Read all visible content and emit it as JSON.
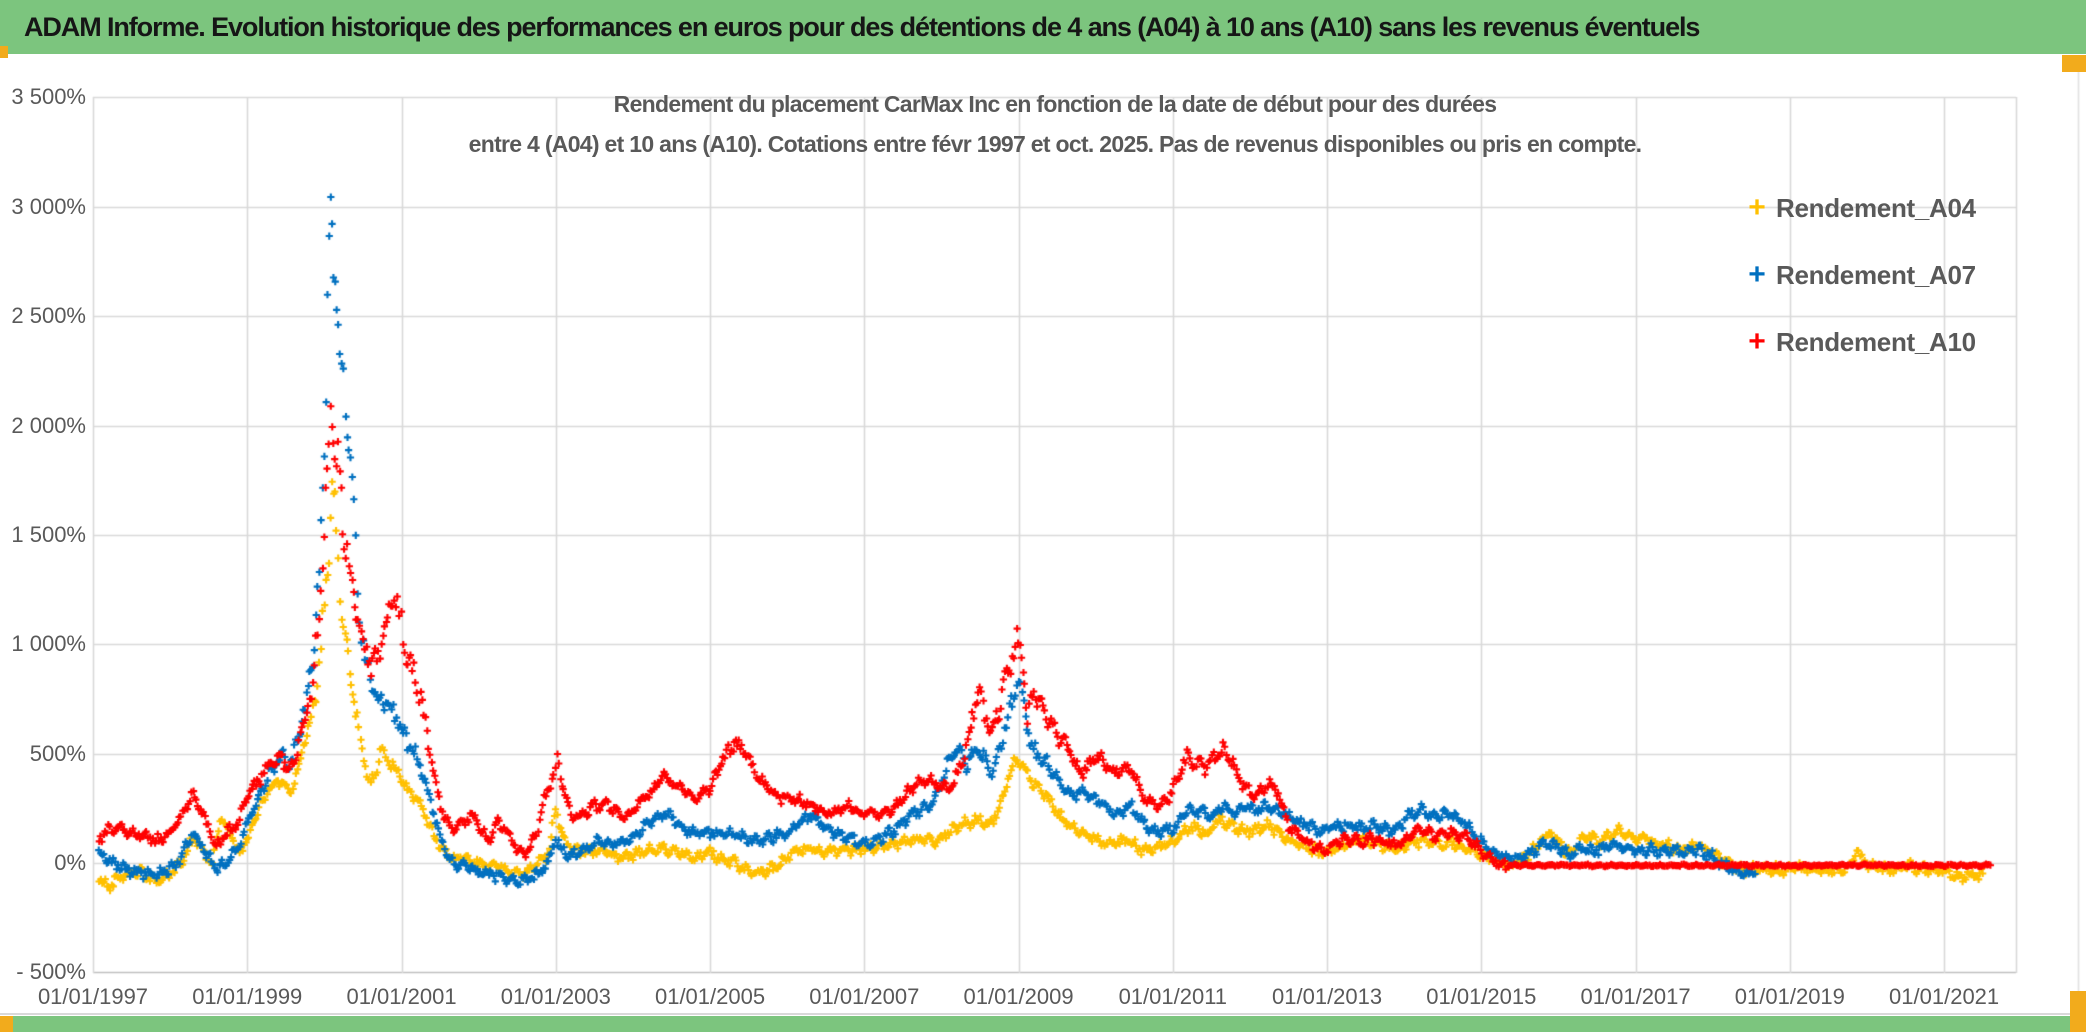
{
  "banner": {
    "text": "ADAM Informe. Evolution historique des performances en euros pour des détentions de 4 ans (A04) à 10 ans (A10) sans les revenus éventuels"
  },
  "chart": {
    "title_line1": "Rendement du placement CarMax Inc en fonction de la date de début pour des durées",
    "title_line2": "entre 4 (A04) et 10 ans (A10). Cotations entre févr 1997 et oct. 2025. Pas de revenus disponibles ou pris en compte."
  },
  "legend": {
    "items": [
      {
        "label": "Rendement_A04",
        "color": "#FFC000"
      },
      {
        "label": "Rendement_A07",
        "color": "#0070C0"
      },
      {
        "label": "Rendement_A10",
        "color": "#FF0000"
      }
    ]
  },
  "colors": {
    "banner_green": "#7cc57e",
    "accent_orange": "#f2ab1c",
    "grid": "#d9d9d9",
    "axis": "#bfbfbf",
    "text_gray": "#595959"
  },
  "chart_data": {
    "type": "scatter",
    "marker": "plus",
    "title": "Rendement du placement CarMax Inc en fonction de la date de début pour des durées entre 4 (A04) et 10 ans (A10). Cotations entre févr 1997 et oct. 2025. Pas de revenus disponibles ou pris en compte.",
    "grid": true,
    "legend_position": "right-top",
    "y_axis": {
      "unit": "%",
      "range": [
        -500,
        3500
      ],
      "ticks": [
        3500,
        3000,
        2500,
        2000,
        1500,
        1000,
        500,
        0,
        -500
      ],
      "tick_labels": [
        "3 500%",
        "3 000%",
        "2 500%",
        "2 000%",
        "1 500%",
        "1 000%",
        "500%",
        "0%",
        "- 500%"
      ]
    },
    "x_axis": {
      "range": [
        1997,
        2021.95
      ],
      "tick_years": [
        1997,
        1999,
        2001,
        2003,
        2005,
        2007,
        2009,
        2011,
        2013,
        2015,
        2017,
        2019,
        2021
      ],
      "tick_labels": [
        "01/01/1997",
        "01/01/1999",
        "01/01/2001",
        "01/01/2003",
        "01/01/2005",
        "01/01/2007",
        "01/01/2009",
        "01/01/2011",
        "01/01/2013",
        "01/01/2015",
        "01/01/2017",
        "01/01/2019",
        "01/01/2021"
      ]
    },
    "series": [
      {
        "name": "Rendement_A04",
        "color": "#FFC000",
        "points": [
          1997.08,
          -75,
          1997.2,
          -110,
          1997.35,
          -60,
          1997.5,
          -35,
          1997.65,
          -50,
          1997.8,
          -80,
          1997.95,
          -65,
          1998.1,
          -20,
          1998.2,
          40,
          1998.3,
          120,
          1998.45,
          50,
          1998.55,
          -10,
          1998.65,
          210,
          1998.78,
          140,
          1998.88,
          40,
          1999.0,
          100,
          1999.15,
          250,
          1999.3,
          350,
          1999.45,
          380,
          1999.55,
          320,
          1999.65,
          430,
          1999.75,
          560,
          1999.85,
          700,
          1999.93,
          900,
          2000.0,
          1150,
          2000.06,
          1450,
          2000.1,
          1700,
          2000.15,
          1500,
          2000.2,
          1250,
          2000.27,
          1020,
          2000.33,
          880,
          2000.4,
          700,
          2000.47,
          550,
          2000.53,
          450,
          2000.6,
          360,
          2000.68,
          440,
          2000.75,
          530,
          2000.82,
          470,
          2000.9,
          450,
          2001.0,
          380,
          2001.1,
          320,
          2001.2,
          300,
          2001.3,
          220,
          2001.4,
          140,
          2001.5,
          80,
          2001.6,
          40,
          2001.7,
          10,
          2001.8,
          30,
          2001.9,
          15,
          2002.0,
          0,
          2002.15,
          -15,
          2002.3,
          -30,
          2002.45,
          -45,
          2002.6,
          -50,
          2002.75,
          -15,
          2002.9,
          40,
          2003.0,
          250,
          2003.1,
          110,
          2003.2,
          60,
          2003.4,
          40,
          2003.55,
          60,
          2003.7,
          50,
          2003.85,
          25,
          2004.0,
          35,
          2004.2,
          55,
          2004.4,
          70,
          2004.6,
          50,
          2004.8,
          30,
          2005.0,
          45,
          2005.2,
          15,
          2005.4,
          -15,
          2005.6,
          -45,
          2005.8,
          -30,
          2005.95,
          15,
          2006.1,
          50,
          2006.3,
          65,
          2006.5,
          50,
          2006.7,
          55,
          2006.9,
          62,
          2007.1,
          70,
          2007.3,
          80,
          2007.5,
          95,
          2007.7,
          105,
          2007.9,
          100,
          2008.1,
          140,
          2008.3,
          180,
          2008.5,
          200,
          2008.62,
          165,
          2008.75,
          250,
          2008.9,
          430,
          2009.0,
          480,
          2009.1,
          420,
          2009.2,
          360,
          2009.35,
          310,
          2009.5,
          230,
          2009.65,
          170,
          2009.8,
          145,
          2009.95,
          125,
          2010.1,
          95,
          2010.25,
          95,
          2010.4,
          100,
          2010.55,
          70,
          2010.7,
          55,
          2010.85,
          80,
          2011.0,
          95,
          2011.15,
          150,
          2011.3,
          160,
          2011.45,
          130,
          2011.6,
          200,
          2011.75,
          175,
          2011.9,
          150,
          2012.05,
          150,
          2012.2,
          170,
          2012.35,
          150,
          2012.5,
          110,
          2012.65,
          85,
          2012.8,
          65,
          2012.95,
          40,
          2013.1,
          65,
          2013.25,
          85,
          2013.4,
          105,
          2013.55,
          95,
          2013.7,
          80,
          2013.85,
          65,
          2014.0,
          75,
          2014.15,
          100,
          2014.3,
          100,
          2014.45,
          90,
          2014.6,
          95,
          2014.75,
          75,
          2014.9,
          60,
          2015.05,
          35,
          2015.2,
          5,
          2015.35,
          -15,
          2015.5,
          10,
          2015.65,
          50,
          2015.8,
          115,
          2015.88,
          140,
          2016.0,
          90,
          2016.15,
          45,
          2016.3,
          110,
          2016.4,
          130,
          2016.5,
          95,
          2016.65,
          115,
          2016.78,
          145,
          2016.9,
          120,
          2017.05,
          105,
          2017.15,
          120,
          2017.3,
          88,
          2017.45,
          80,
          2017.6,
          60,
          2017.75,
          85,
          2017.9,
          65,
          2018.05,
          25,
          2018.2,
          -5,
          2018.35,
          -25,
          2018.5,
          -32,
          2018.65,
          -25,
          2018.8,
          -32,
          2018.95,
          -28,
          2019.15,
          -28,
          2019.35,
          -32,
          2019.55,
          -30,
          2019.75,
          -20,
          2019.87,
          55,
          2019.95,
          5,
          2020.1,
          -20,
          2020.3,
          -25,
          2020.5,
          -12,
          2020.7,
          -25,
          2020.9,
          -32,
          2021.05,
          -45,
          2021.2,
          -70,
          2021.35,
          -58,
          2021.5,
          -48
        ]
      },
      {
        "name": "Rendement_A07",
        "color": "#0070C0",
        "points": [
          1997.08,
          45,
          1997.2,
          10,
          1997.35,
          -15,
          1997.5,
          -35,
          1997.65,
          -45,
          1997.8,
          -55,
          1997.95,
          -35,
          1998.1,
          0,
          1998.2,
          70,
          1998.3,
          150,
          1998.45,
          50,
          1998.6,
          -30,
          1998.75,
          15,
          1998.88,
          60,
          1999.0,
          180,
          1999.15,
          300,
          1999.3,
          420,
          1999.45,
          500,
          1999.55,
          430,
          1999.65,
          560,
          1999.75,
          700,
          1999.85,
          950,
          1999.93,
          1300,
          2000.0,
          1900,
          2000.04,
          2550,
          2000.08,
          2915,
          2000.12,
          2700,
          2000.16,
          2600,
          2000.2,
          2350,
          2000.25,
          2200,
          2000.3,
          2000,
          2000.34,
          1850,
          2000.38,
          1550,
          2000.43,
          1250,
          2000.48,
          1050,
          2000.55,
          900,
          2000.62,
          800,
          2000.7,
          720,
          2000.78,
          760,
          2000.85,
          720,
          2000.93,
          660,
          2001.0,
          600,
          2001.1,
          540,
          2001.2,
          480,
          2001.3,
          380,
          2001.4,
          250,
          2001.5,
          120,
          2001.6,
          30,
          2001.7,
          -20,
          2001.8,
          5,
          2001.9,
          -20,
          2002.0,
          -40,
          2002.15,
          -55,
          2002.3,
          -62,
          2002.45,
          -72,
          2002.6,
          -78,
          2002.75,
          -55,
          2002.9,
          0,
          2003.0,
          110,
          2003.1,
          55,
          2003.2,
          30,
          2003.4,
          70,
          2003.55,
          95,
          2003.7,
          85,
          2003.85,
          95,
          2004.0,
          120,
          2004.2,
          185,
          2004.4,
          230,
          2004.6,
          175,
          2004.8,
          135,
          2005.0,
          135,
          2005.2,
          140,
          2005.4,
          120,
          2005.6,
          100,
          2005.8,
          120,
          2005.95,
          135,
          2006.1,
          160,
          2006.3,
          225,
          2006.45,
          180,
          2006.6,
          130,
          2006.75,
          125,
          2006.9,
          100,
          2007.05,
          95,
          2007.2,
          115,
          2007.35,
          140,
          2007.5,
          185,
          2007.65,
          230,
          2007.8,
          250,
          2007.95,
          320,
          2008.1,
          470,
          2008.2,
          520,
          2008.32,
          450,
          2008.45,
          520,
          2008.55,
          480,
          2008.65,
          400,
          2008.78,
          550,
          2008.9,
          720,
          2009.0,
          850,
          2009.07,
          760,
          2009.15,
          540,
          2009.25,
          490,
          2009.4,
          440,
          2009.55,
          350,
          2009.7,
          310,
          2009.85,
          330,
          2010.0,
          290,
          2010.15,
          250,
          2010.3,
          225,
          2010.45,
          270,
          2010.6,
          190,
          2010.75,
          140,
          2010.9,
          150,
          2011.05,
          170,
          2011.2,
          250,
          2011.35,
          230,
          2011.5,
          215,
          2011.65,
          260,
          2011.8,
          235,
          2011.95,
          255,
          2012.1,
          240,
          2012.25,
          260,
          2012.4,
          230,
          2012.55,
          200,
          2012.7,
          175,
          2012.85,
          155,
          2013.0,
          150,
          2013.15,
          170,
          2013.3,
          170,
          2013.45,
          155,
          2013.6,
          170,
          2013.75,
          150,
          2013.9,
          150,
          2014.05,
          215,
          2014.2,
          245,
          2014.35,
          210,
          2014.5,
          225,
          2014.65,
          215,
          2014.8,
          175,
          2014.95,
          110,
          2015.1,
          55,
          2015.25,
          30,
          2015.4,
          20,
          2015.55,
          30,
          2015.7,
          60,
          2015.85,
          95,
          2016.0,
          65,
          2016.15,
          40,
          2016.3,
          65,
          2016.45,
          55,
          2016.6,
          65,
          2016.75,
          80,
          2016.9,
          65,
          2017.05,
          55,
          2017.2,
          65,
          2017.35,
          52,
          2017.5,
          58,
          2017.65,
          52,
          2017.8,
          62,
          2017.95,
          38,
          2018.1,
          5,
          2018.25,
          -28,
          2018.4,
          -45,
          2018.55,
          -50
        ]
      },
      {
        "name": "Rendement_A10",
        "color": "#FF0000",
        "flat_after": 2015.32,
        "points": [
          1997.08,
          110,
          1997.2,
          150,
          1997.35,
          155,
          1997.5,
          140,
          1997.65,
          130,
          1997.8,
          100,
          1997.95,
          125,
          1998.1,
          190,
          1998.2,
          250,
          1998.3,
          320,
          1998.45,
          195,
          1998.6,
          70,
          1998.75,
          140,
          1998.88,
          185,
          1999.0,
          300,
          1999.15,
          380,
          1999.3,
          450,
          1999.45,
          480,
          1999.55,
          420,
          1999.65,
          520,
          1999.75,
          640,
          1999.85,
          820,
          1999.93,
          1150,
          2000.0,
          1500,
          2000.04,
          1800,
          2000.08,
          2075,
          2000.13,
          1950,
          2000.18,
          1780,
          2000.24,
          1600,
          2000.3,
          1420,
          2000.36,
          1280,
          2000.43,
          1130,
          2000.5,
          1020,
          2000.57,
          930,
          2000.64,
          900,
          2000.72,
          980,
          2000.8,
          1100,
          2000.88,
          1220,
          2000.95,
          1150,
          2001.02,
          1050,
          2001.1,
          920,
          2001.18,
          850,
          2001.25,
          750,
          2001.35,
          550,
          2001.45,
          350,
          2001.55,
          220,
          2001.65,
          150,
          2001.75,
          160,
          2001.85,
          200,
          2001.95,
          210,
          2002.05,
          130,
          2002.15,
          105,
          2002.25,
          185,
          2002.35,
          155,
          2002.45,
          90,
          2002.55,
          45,
          2002.65,
          55,
          2002.75,
          140,
          2002.85,
          290,
          2002.95,
          390,
          2003.02,
          460,
          2003.1,
          340,
          2003.2,
          210,
          2003.35,
          225,
          2003.5,
          260,
          2003.65,
          265,
          2003.8,
          230,
          2003.95,
          215,
          2004.1,
          280,
          2004.25,
          330,
          2004.4,
          400,
          2004.55,
          365,
          2004.7,
          320,
          2004.85,
          295,
          2005.0,
          350,
          2005.15,
          460,
          2005.3,
          545,
          2005.45,
          510,
          2005.6,
          400,
          2005.75,
          340,
          2005.9,
          300,
          2006.05,
          300,
          2006.2,
          280,
          2006.35,
          260,
          2006.5,
          230,
          2006.65,
          240,
          2006.8,
          265,
          2006.95,
          225,
          2007.1,
          225,
          2007.25,
          235,
          2007.4,
          255,
          2007.55,
          320,
          2007.7,
          370,
          2007.85,
          375,
          2008.0,
          350,
          2008.15,
          345,
          2008.3,
          500,
          2008.42,
          700,
          2008.5,
          780,
          2008.62,
          600,
          2008.75,
          700,
          2008.88,
          930,
          2009.0,
          1000,
          2009.06,
          940,
          2009.12,
          640,
          2009.2,
          790,
          2009.3,
          700,
          2009.42,
          660,
          2009.55,
          560,
          2009.68,
          500,
          2009.8,
          410,
          2009.92,
          455,
          2010.02,
          490,
          2010.13,
          450,
          2010.25,
          400,
          2010.37,
          440,
          2010.48,
          420,
          2010.6,
          310,
          2010.72,
          280,
          2010.85,
          265,
          2010.95,
          300,
          2011.07,
          390,
          2011.18,
          480,
          2011.3,
          460,
          2011.42,
          435,
          2011.55,
          490,
          2011.65,
          520,
          2011.78,
          450,
          2011.9,
          360,
          2012.02,
          310,
          2012.14,
          335,
          2012.25,
          365,
          2012.37,
          325,
          2012.5,
          160,
          2012.65,
          125,
          2012.8,
          85,
          2012.95,
          50,
          2013.1,
          95,
          2013.25,
          115,
          2013.4,
          95,
          2013.55,
          110,
          2013.7,
          100,
          2013.85,
          82,
          2014.0,
          105,
          2014.15,
          140,
          2014.3,
          135,
          2014.45,
          120,
          2014.6,
          140,
          2014.75,
          122,
          2014.9,
          85,
          2015.05,
          45,
          2015.2,
          5,
          2015.32,
          -12,
          2016.0,
          -10,
          2017.0,
          -12,
          2018.0,
          -10,
          2019.0,
          -12,
          2020.0,
          -10,
          2021.0,
          -12,
          2021.6,
          -10
        ]
      }
    ]
  }
}
